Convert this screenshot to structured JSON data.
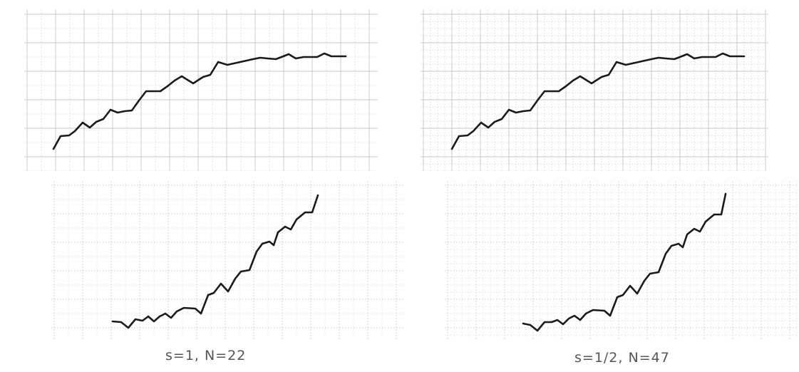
{
  "figure": {
    "captions": {
      "left": "s=1, N=22",
      "right": "s=1/2, N=47"
    }
  },
  "panels": [
    {
      "id": "top-left",
      "grid": "coarse",
      "curve": "plateau"
    },
    {
      "id": "top-right",
      "grid": "fine",
      "curve": "plateau"
    },
    {
      "id": "bottom-left",
      "grid": "coarse",
      "curve": "rising"
    },
    {
      "id": "bottom-right",
      "grid": "fine",
      "curve": "rising"
    }
  ],
  "colors": {
    "curve": "#1a1a1a",
    "grid_major": "#c9c9c9",
    "grid_minor": "#dcdcdc",
    "caption": "#555555"
  }
}
